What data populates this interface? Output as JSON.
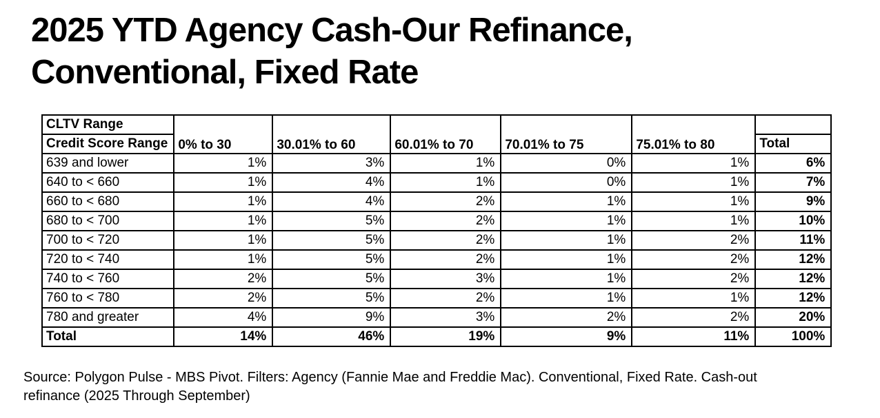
{
  "title": {
    "line1": "2025 YTD Agency Cash-Our Refinance,",
    "line2": "Conventional, Fixed Rate",
    "full": "2025 YTD Agency Cash-Our Refinance, Conventional, Fixed Rate"
  },
  "table": {
    "corner_top_label": "CLTV Range",
    "corner_bottom_label": "Credit Score Range",
    "column_headers": [
      "0% to 30",
      "30.01% to 60",
      "60.01% to 70",
      "70.01% to 75",
      "75.01% to 80"
    ],
    "total_column_header": "Total",
    "rows": [
      {
        "label": "639 and lower",
        "values": [
          "1%",
          "3%",
          "1%",
          "0%",
          "1%"
        ],
        "total": "6%"
      },
      {
        "label": "640 to < 660",
        "values": [
          "1%",
          "4%",
          "1%",
          "0%",
          "1%"
        ],
        "total": "7%"
      },
      {
        "label": "660 to < 680",
        "values": [
          "1%",
          "4%",
          "2%",
          "1%",
          "1%"
        ],
        "total": "9%"
      },
      {
        "label": "680 to < 700",
        "values": [
          "1%",
          "5%",
          "2%",
          "1%",
          "1%"
        ],
        "total": "10%"
      },
      {
        "label": "700 to < 720",
        "values": [
          "1%",
          "5%",
          "2%",
          "1%",
          "2%"
        ],
        "total": "11%"
      },
      {
        "label": "720 to < 740",
        "values": [
          "1%",
          "5%",
          "2%",
          "1%",
          "2%"
        ],
        "total": "12%"
      },
      {
        "label": "740 to < 760",
        "values": [
          "2%",
          "5%",
          "3%",
          "1%",
          "2%"
        ],
        "total": "12%"
      },
      {
        "label": "760 to < 780",
        "values": [
          "2%",
          "5%",
          "2%",
          "1%",
          "1%"
        ],
        "total": "12%"
      },
      {
        "label": "780 and greater",
        "values": [
          "4%",
          "9%",
          "3%",
          "2%",
          "2%"
        ],
        "total": "20%"
      }
    ],
    "total_row": {
      "label": "Total",
      "values": [
        "14%",
        "46%",
        "19%",
        "9%",
        "11%"
      ],
      "total": "100%"
    }
  },
  "source_note": "Source: Polygon Pulse - MBS Pivot. Filters: Agency (Fannie Mae and Freddie Mac). Conventional, Fixed Rate. Cash-out refinance (2025 Through September)",
  "colors": {
    "text": "#000000",
    "background": "#ffffff",
    "border": "#000000"
  },
  "chart_data": {
    "type": "table",
    "title": "2025 YTD Agency Cash-Our Refinance, Conventional, Fixed Rate",
    "column_dimension": "CLTV Range",
    "row_dimension": "Credit Score Range",
    "columns": [
      "0% to 30",
      "30.01% to 60",
      "60.01% to 70",
      "70.01% to 75",
      "75.01% to 80",
      "Total"
    ],
    "rows": [
      "639 and lower",
      "640 to < 660",
      "660 to < 680",
      "680 to < 700",
      "700 to < 720",
      "720 to < 740",
      "740 to < 760",
      "760 to < 780",
      "780 and greater",
      "Total"
    ],
    "unit": "%",
    "values": [
      [
        1,
        3,
        1,
        0,
        1,
        6
      ],
      [
        1,
        4,
        1,
        0,
        1,
        7
      ],
      [
        1,
        4,
        2,
        1,
        1,
        9
      ],
      [
        1,
        5,
        2,
        1,
        1,
        10
      ],
      [
        1,
        5,
        2,
        1,
        2,
        11
      ],
      [
        1,
        5,
        2,
        1,
        2,
        12
      ],
      [
        2,
        5,
        3,
        1,
        2,
        12
      ],
      [
        2,
        5,
        2,
        1,
        1,
        12
      ],
      [
        4,
        9,
        3,
        2,
        2,
        20
      ],
      [
        14,
        46,
        19,
        9,
        11,
        100
      ]
    ],
    "source": "Source: Polygon Pulse - MBS Pivot. Filters: Agency (Fannie Mae and Freddie Mac). Conventional, Fixed Rate. Cash-out refinance (2025 Through September)"
  }
}
